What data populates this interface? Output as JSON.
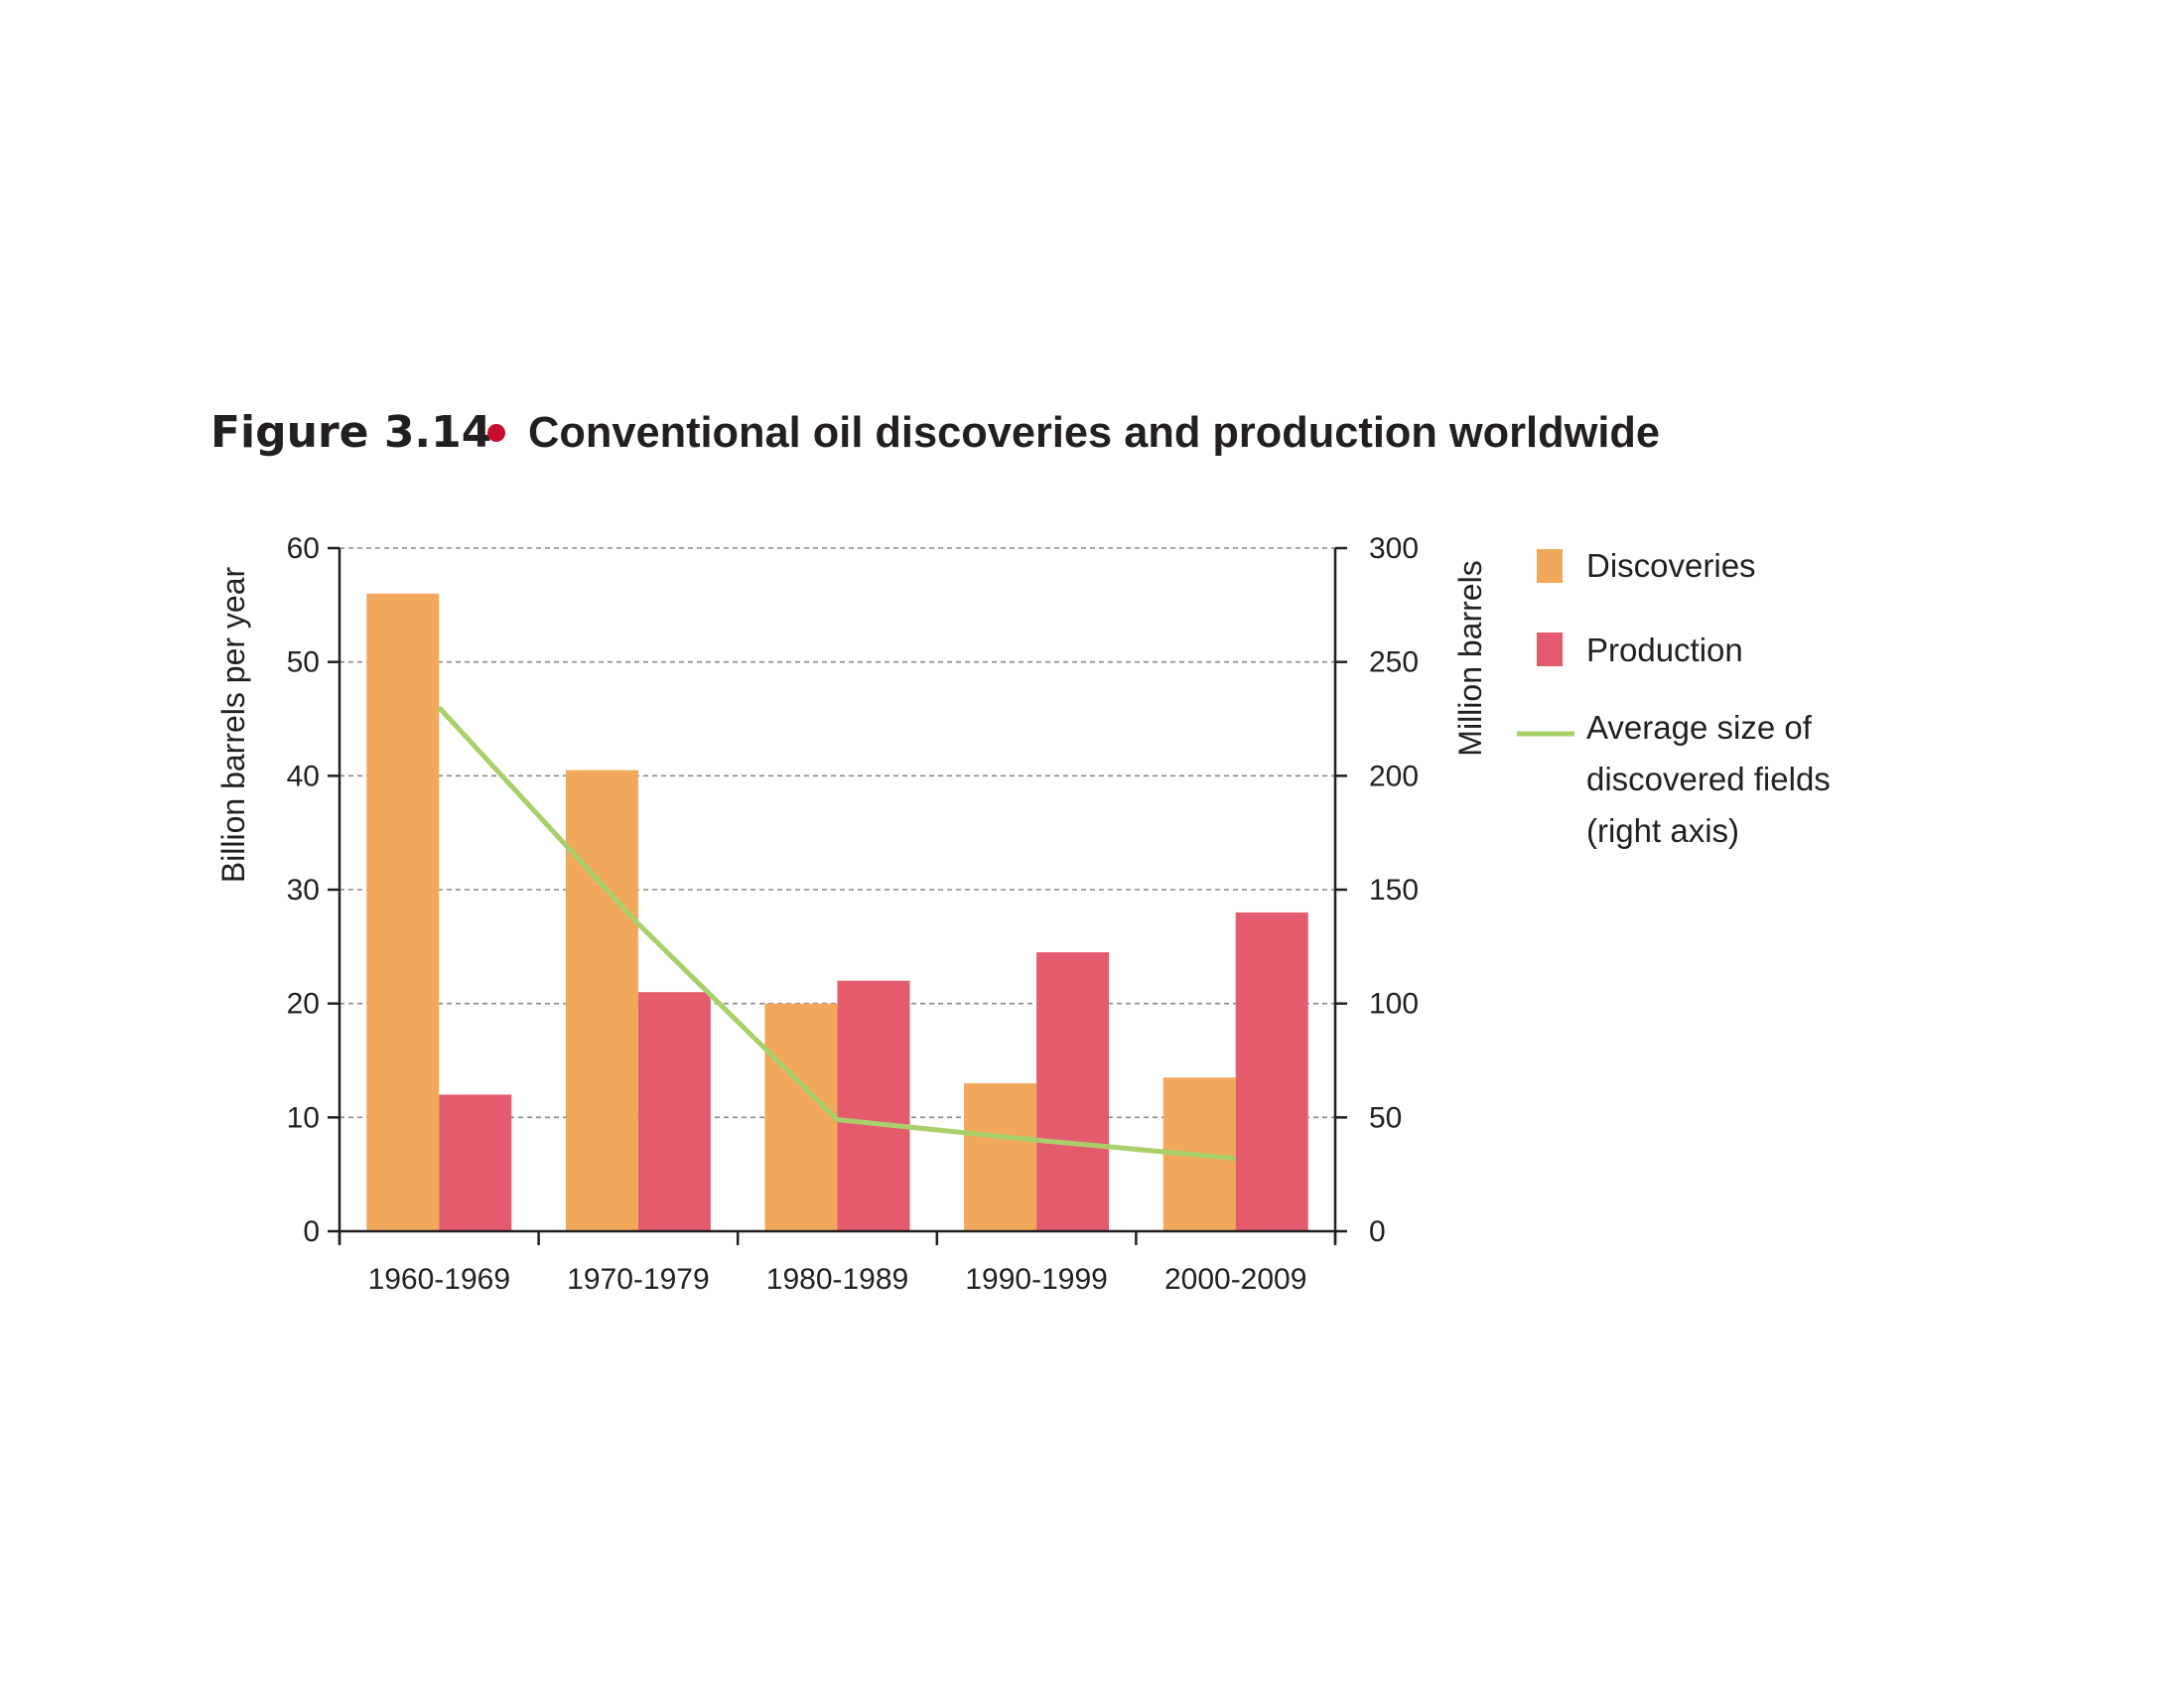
{
  "figure": {
    "label": "Figure 3.14",
    "bullet_color": "#c8102e",
    "title": "Conventional oil discoveries and production worldwide"
  },
  "chart_data": {
    "type": "bar",
    "title": "Conventional oil discoveries and production worldwide",
    "categories": [
      "1960-1969",
      "1970-1979",
      "1980-1989",
      "1990-1999",
      "2000-2009"
    ],
    "series": [
      {
        "name": "Discoveries",
        "kind": "bar",
        "axis": "left",
        "color": "#f2a85a",
        "values": [
          56,
          40.5,
          20,
          13,
          13.5
        ]
      },
      {
        "name": "Production",
        "kind": "bar",
        "axis": "left",
        "color": "#e35b6d",
        "values": [
          12,
          21,
          22,
          24.5,
          28
        ]
      },
      {
        "name": "Average size of discovered fields (right axis)",
        "kind": "line",
        "axis": "right",
        "color": "#a9cf6a",
        "values": [
          230,
          135,
          49,
          40,
          32
        ]
      }
    ],
    "ylabel": "Billion barrels per year",
    "ylim": [
      0,
      60
    ],
    "yticks": [
      0,
      10,
      20,
      30,
      40,
      50,
      60
    ],
    "y2label": "Million barrels",
    "y2lim": [
      0,
      300
    ],
    "y2ticks": [
      0,
      50,
      100,
      150,
      200,
      250,
      300
    ],
    "grid": true,
    "legend": {
      "placement": "right",
      "entries": [
        {
          "lines": [
            "Discoveries"
          ]
        },
        {
          "lines": [
            "Production"
          ]
        },
        {
          "lines": [
            "Average size of",
            "discovered fields",
            "(right axis)"
          ]
        }
      ]
    }
  }
}
